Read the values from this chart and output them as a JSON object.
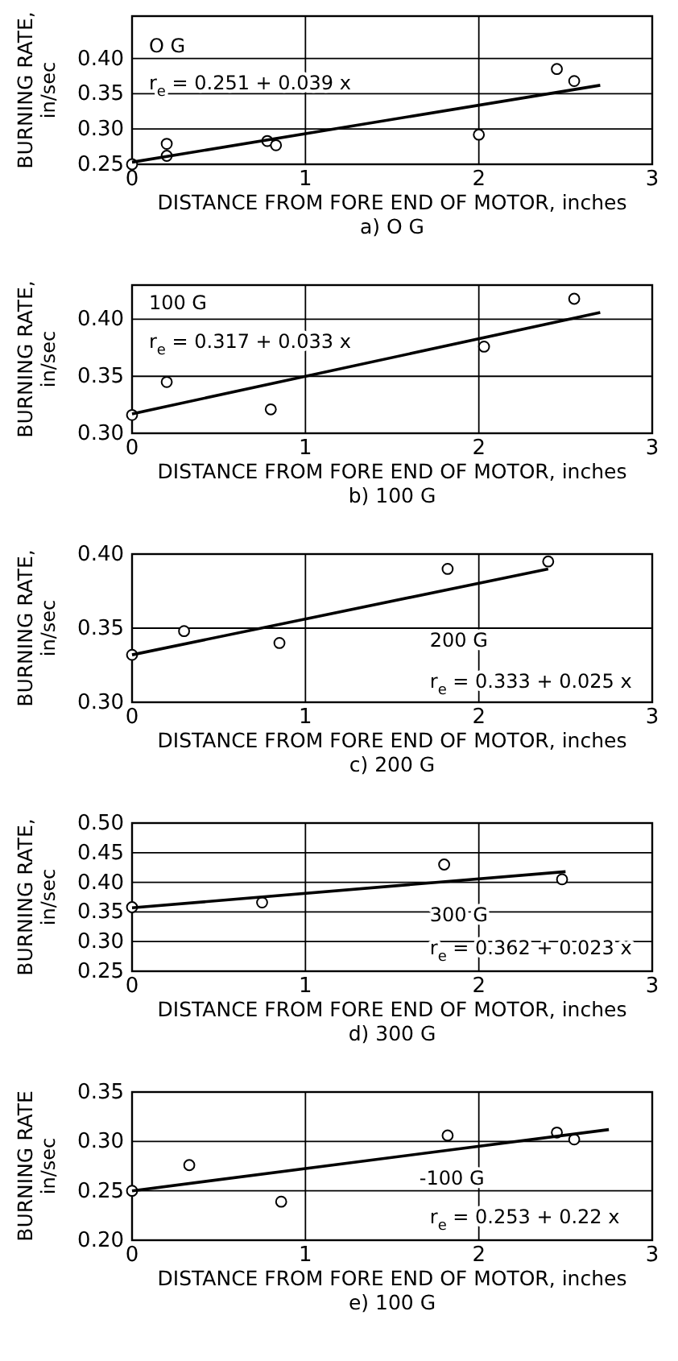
{
  "chart_data": [
    {
      "type": "scatter",
      "title": "a) O G",
      "xlabel": "DISTANCE FROM FORE END OF MOTOR, inches",
      "ylabel": "BURNING RATE, in/sec",
      "xlim": [
        0,
        3
      ],
      "xticks": [
        0,
        1,
        2,
        3
      ],
      "ylim": [
        0.25,
        0.46
      ],
      "yticks": [
        {
          "value": 0.25,
          "label": "0.25"
        },
        {
          "value": 0.3,
          "label": "0.30"
        },
        {
          "value": 0.35,
          "label": "0.35"
        },
        {
          "value": 0.4,
          "label": "0.40"
        }
      ],
      "grid": true,
      "marker": "circle",
      "annotations": [
        "O G",
        "r$_{e}$ = 0.251 + 0.039 x"
      ],
      "series": [
        {
          "color": "#000000",
          "x": [
            0,
            0.2,
            0.2,
            0.78,
            0.83,
            2.0,
            2.45,
            2.55
          ],
          "values": [
            0.25,
            0.279,
            0.262,
            0.283,
            0.277,
            0.292,
            0.385,
            0.368
          ]
        },
        {
          "type": "line",
          "marker": "none",
          "color": "#000000",
          "x": [
            0,
            2.7
          ],
          "values": [
            0.253,
            0.362
          ]
        }
      ]
    },
    {
      "type": "scatter",
      "title": "b) 100 G",
      "xlabel": "DISTANCE FROM FORE END OF MOTOR, inches",
      "ylabel": "BURNING RATE, in/sec",
      "xlim": [
        0,
        3
      ],
      "xticks": [
        0,
        1,
        2,
        3
      ],
      "ylim": [
        0.3,
        0.43
      ],
      "yticks": [
        {
          "value": 0.3,
          "label": "0.30"
        },
        {
          "value": 0.35,
          "label": "0.35"
        },
        {
          "value": 0.4,
          "label": "0.40"
        }
      ],
      "grid": true,
      "marker": "circle",
      "annotations": [
        "100 G",
        "r$_{e}$ = 0.317 + 0.033 x"
      ],
      "series": [
        {
          "color": "#000000",
          "x": [
            0,
            0.2,
            0.8,
            2.03,
            2.55
          ],
          "values": [
            0.316,
            0.345,
            0.321,
            0.376,
            0.418
          ]
        },
        {
          "type": "line",
          "marker": "none",
          "color": "#000000",
          "x": [
            0,
            2.7
          ],
          "values": [
            0.317,
            0.406
          ]
        }
      ]
    },
    {
      "type": "scatter",
      "title": "c) 200 G",
      "xlabel": "DISTANCE FROM FORE END OF MOTOR, inches",
      "ylabel": "BURNING RATE, in/sec",
      "xlim": [
        0,
        3
      ],
      "xticks": [
        0,
        1,
        2,
        3
      ],
      "ylim": [
        0.3,
        0.4
      ],
      "yticks": [
        {
          "value": 0.3,
          "label": "0.30"
        },
        {
          "value": 0.35,
          "label": "0.35"
        },
        {
          "value": 0.4,
          "label": "0.40"
        }
      ],
      "grid": true,
      "marker": "circle",
      "annotations": [
        "200 G",
        "r$_{e}$ = 0.333 + 0.025 x"
      ],
      "series": [
        {
          "color": "#000000",
          "x": [
            0,
            0.3,
            0.85,
            1.82,
            2.4
          ],
          "values": [
            0.332,
            0.348,
            0.34,
            0.39,
            0.395
          ]
        },
        {
          "type": "line",
          "marker": "none",
          "color": "#000000",
          "x": [
            0,
            2.4
          ],
          "values": [
            0.332,
            0.39
          ]
        }
      ]
    },
    {
      "type": "scatter",
      "title": "d) 300 G",
      "xlabel": "DISTANCE FROM FORE END OF MOTOR, inches",
      "ylabel": "BURNING RATE, in/sec",
      "xlim": [
        0,
        3
      ],
      "xticks": [
        0,
        1,
        2,
        3
      ],
      "ylim": [
        0.25,
        0.5
      ],
      "yticks": [
        {
          "value": 0.25,
          "label": "0.25"
        },
        {
          "value": 0.3,
          "label": "0.30"
        },
        {
          "value": 0.35,
          "label": "0.35"
        },
        {
          "value": 0.4,
          "label": "0.40"
        },
        {
          "value": 0.45,
          "label": "0.45"
        },
        {
          "value": 0.5,
          "label": "0.50"
        }
      ],
      "grid": true,
      "marker": "circle",
      "annotations": [
        "300 G",
        "r$_{e}$ = 0.362 + 0.023 x"
      ],
      "series": [
        {
          "color": "#000000",
          "x": [
            0,
            0.75,
            1.8,
            2.48
          ],
          "values": [
            0.358,
            0.366,
            0.43,
            0.405
          ]
        },
        {
          "type": "line",
          "marker": "none",
          "color": "#000000",
          "x": [
            0,
            2.5
          ],
          "values": [
            0.357,
            0.418
          ]
        }
      ]
    },
    {
      "type": "scatter",
      "title": "e) 100 G",
      "xlabel": "DISTANCE FROM FORE END OF MOTOR, inches",
      "ylabel": "BURNING RATE in/sec",
      "xlim": [
        0,
        3
      ],
      "xticks": [
        0,
        1,
        2,
        3
      ],
      "ylim": [
        0.2,
        0.35
      ],
      "yticks": [
        {
          "value": 0.2,
          "label": "0.20"
        },
        {
          "value": 0.25,
          "label": "0.25"
        },
        {
          "value": 0.3,
          "label": "0.30"
        },
        {
          "value": 0.35,
          "label": "0.35"
        }
      ],
      "grid": true,
      "marker": "circle",
      "annotations": [
        "-100 G",
        "r$_{e}$ = 0.253 + 0.22 x"
      ],
      "series": [
        {
          "color": "#000000",
          "x": [
            0,
            0.33,
            0.86,
            1.82,
            2.45,
            2.55
          ],
          "values": [
            0.25,
            0.276,
            0.239,
            0.306,
            0.309,
            0.302
          ]
        },
        {
          "type": "line",
          "marker": "none",
          "color": "#000000",
          "x": [
            0,
            2.75
          ],
          "values": [
            0.25,
            0.312
          ]
        }
      ]
    }
  ]
}
